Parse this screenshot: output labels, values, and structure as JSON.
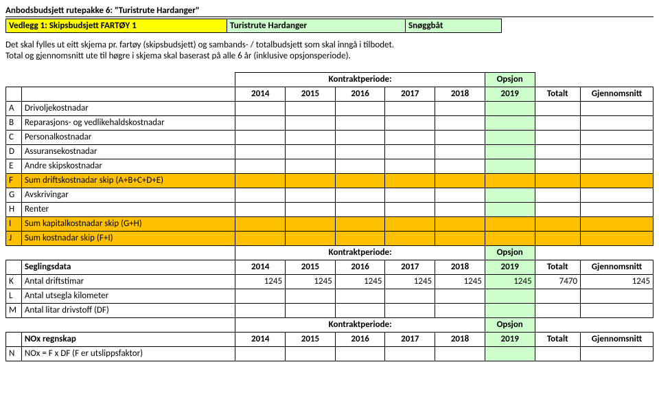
{
  "title": "Anbodsbudsjett rutepakke 6: \"Turistrute Hardanger\"",
  "header": {
    "vedlegg": "Vedlegg 1: Skipsbudsjett FARTØY 1",
    "rute": "Turistrute Hardanger",
    "type": "Snøggbåt"
  },
  "intro1": "Det skal fylles ut eitt skjema pr. fartøy (skipsbudsjett) og sambands- / totalbudsjett som skal inngå i tilbodet.",
  "intro2": "Total og gjennomsnitt ute til høgre i skjema skal baserast på alle 6 år (inklusive opsjonsperiode).",
  "labels": {
    "kontraktperiode": "Kontraktperiode:",
    "opsjon": "Opsjon",
    "totalt": "Totalt",
    "gjennomsnitt": "Gjennomsnitt"
  },
  "years": [
    "2014",
    "2015",
    "2016",
    "2017",
    "2018",
    "2019"
  ],
  "rowsA": [
    {
      "code": "A",
      "label": "Drivoljekostnadar",
      "hl": false
    },
    {
      "code": "B",
      "label": "Reparasjons- og vedlikehaldskostnadar",
      "hl": false
    },
    {
      "code": "C",
      "label": "Personalkostnadar",
      "hl": false
    },
    {
      "code": "D",
      "label": "Assuransekostnadar",
      "hl": false
    },
    {
      "code": "E",
      "label": "Andre skipskostnadar",
      "hl": false
    },
    {
      "code": "F",
      "label": "Sum driftskostnadar skip (A+B+C+D+E)",
      "hl": true
    },
    {
      "code": "G",
      "label": "Avskrivingar",
      "hl": false
    },
    {
      "code": "H",
      "label": "Renter",
      "hl": false
    },
    {
      "code": "I",
      "label": "Sum kapitalkostnadar skip (G+H)",
      "hl": true
    },
    {
      "code": "J",
      "label": "Sum kostnadar skip (F+I)",
      "hl": true
    }
  ],
  "seglingsdata": {
    "title": "Seglingsdata",
    "rows": [
      {
        "code": "K",
        "label": "Antal driftstimar",
        "vals": [
          "1245",
          "1245",
          "1245",
          "1245",
          "1245",
          "1245"
        ],
        "tot": "7470",
        "avg": "1245"
      },
      {
        "code": "L",
        "label": "Antal utsegla kilometer",
        "vals": [
          "",
          "",
          "",
          "",
          "",
          ""
        ],
        "tot": "",
        "avg": ""
      },
      {
        "code": "M",
        "label": "Antal litar drivstoff (DF)",
        "vals": [
          "",
          "",
          "",
          "",
          "",
          ""
        ],
        "tot": "",
        "avg": ""
      }
    ]
  },
  "nox": {
    "title": "NOx regnskap",
    "rows": [
      {
        "code": "N",
        "label": "NOx = F x DF (F er utslippsfaktor)"
      }
    ]
  }
}
